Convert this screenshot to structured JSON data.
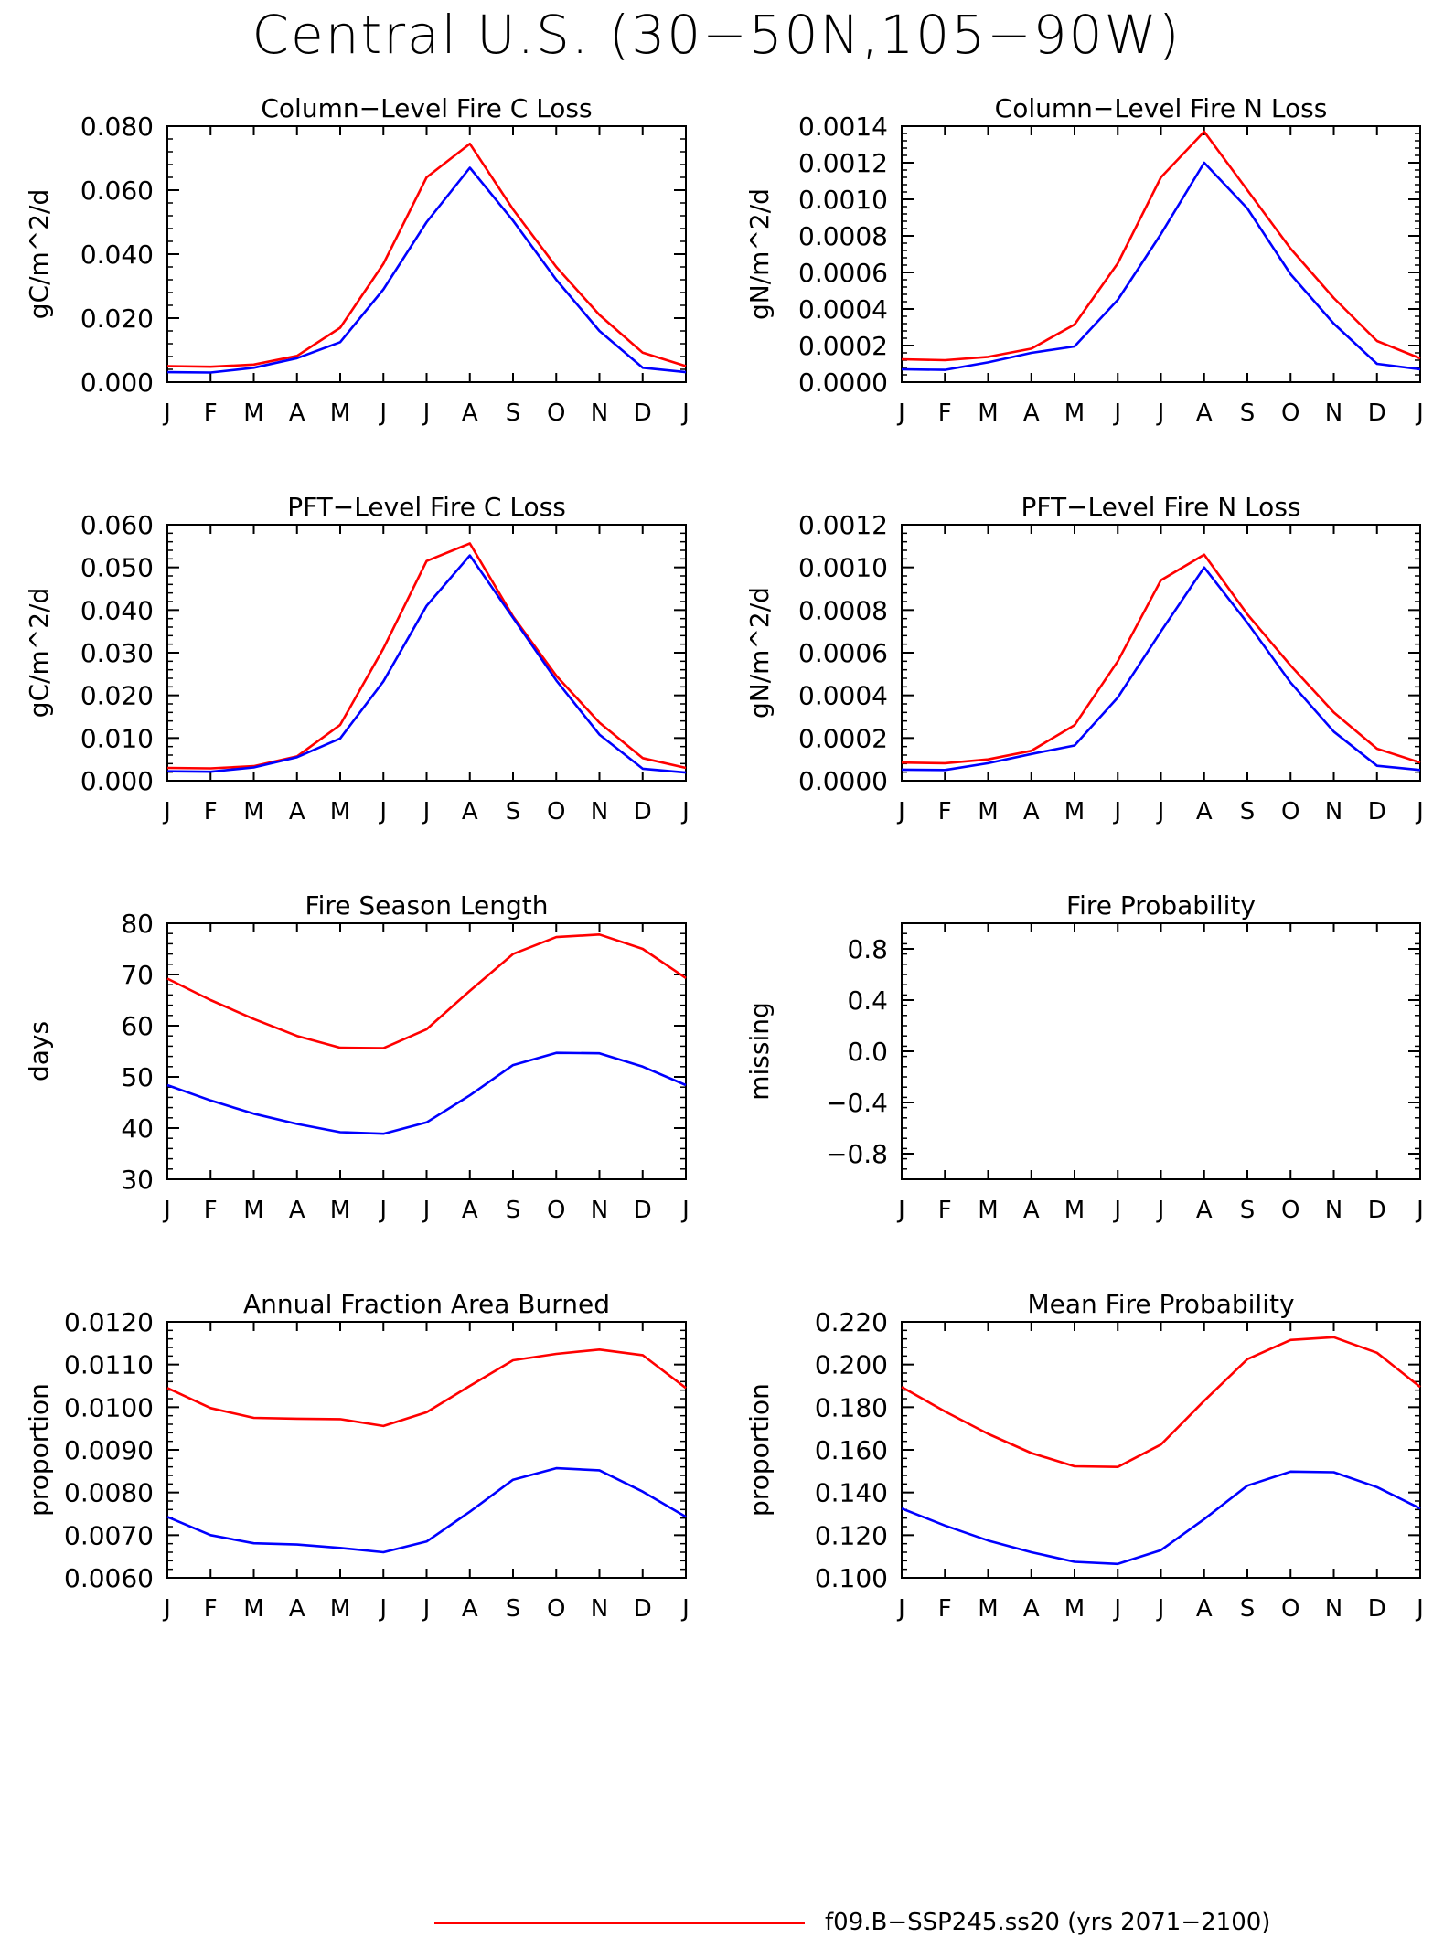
{
  "figure": {
    "title": "Central U.S. (30−50N,105−90W)"
  },
  "legend": {
    "label": "f09.B−SSP245.ss20 (yrs 2071−2100)",
    "color": "#ff0000"
  },
  "chart_data": [
    {
      "type": "line",
      "title": "Column−Level Fire C Loss",
      "ylabel": "gC/m^2/d",
      "xticklabels": [
        "J",
        "F",
        "M",
        "A",
        "M",
        "J",
        "J",
        "A",
        "S",
        "O",
        "N",
        "D",
        "J"
      ],
      "ylim": [
        0,
        0.08
      ],
      "yticks": [
        0,
        0.02,
        0.04,
        0.06,
        0.08
      ],
      "yticklabels": [
        "0.000",
        "0.020",
        "0.040",
        "0.060",
        "0.080"
      ],
      "series": [
        {
          "color": "#ff0000",
          "values": [
            0.005,
            0.0048,
            0.0055,
            0.0082,
            0.017,
            0.037,
            0.064,
            0.0745,
            0.054,
            0.036,
            0.021,
            0.0092,
            0.005
          ]
        },
        {
          "color": "#0000ff",
          "values": [
            0.0031,
            0.003,
            0.0045,
            0.0075,
            0.0125,
            0.029,
            0.05,
            0.067,
            0.0505,
            0.032,
            0.016,
            0.0045,
            0.0031
          ]
        }
      ]
    },
    {
      "type": "line",
      "title": "Column−Level Fire N Loss",
      "ylabel": "gN/m^2/d",
      "xticklabels": [
        "J",
        "F",
        "M",
        "A",
        "M",
        "J",
        "J",
        "A",
        "S",
        "O",
        "N",
        "D",
        "J"
      ],
      "ylim": [
        0,
        0.0014
      ],
      "yticks": [
        0,
        0.0002,
        0.0004,
        0.0006,
        0.0008,
        0.001,
        0.0012,
        0.0014
      ],
      "yticklabels": [
        "0.0000",
        "0.0002",
        "0.0004",
        "0.0006",
        "0.0008",
        "0.0010",
        "0.0012",
        "0.0014"
      ],
      "series": [
        {
          "color": "#ff0000",
          "values": [
            0.000125,
            0.00012,
            0.000138,
            0.000183,
            0.000315,
            0.00065,
            0.00112,
            0.00137,
            0.00105,
            0.00073,
            0.00046,
            0.000225,
            0.00013
          ]
        },
        {
          "color": "#0000ff",
          "values": [
            7e-05,
            6.7e-05,
            0.000108,
            0.00016,
            0.000195,
            0.00045,
            0.00081,
            0.0012,
            0.00095,
            0.00059,
            0.00032,
            0.0001,
            7e-05
          ]
        }
      ]
    },
    {
      "type": "line",
      "title": "PFT−Level Fire C Loss",
      "ylabel": "gC/m^2/d",
      "xticklabels": [
        "J",
        "F",
        "M",
        "A",
        "M",
        "J",
        "J",
        "A",
        "S",
        "O",
        "N",
        "D",
        "J"
      ],
      "ylim": [
        0,
        0.06
      ],
      "yticks": [
        0,
        0.01,
        0.02,
        0.03,
        0.04,
        0.05,
        0.06
      ],
      "yticklabels": [
        "0.000",
        "0.010",
        "0.020",
        "0.030",
        "0.040",
        "0.050",
        "0.060"
      ],
      "series": [
        {
          "color": "#ff0000",
          "values": [
            0.003,
            0.0029,
            0.0034,
            0.0057,
            0.0131,
            0.031,
            0.0515,
            0.0556,
            0.0385,
            0.0246,
            0.0136,
            0.0053,
            0.003
          ]
        },
        {
          "color": "#0000ff",
          "values": [
            0.0022,
            0.0021,
            0.0031,
            0.0055,
            0.0099,
            0.0233,
            0.041,
            0.0528,
            0.0382,
            0.0235,
            0.0108,
            0.0028,
            0.0019
          ]
        }
      ]
    },
    {
      "type": "line",
      "title": "PFT−Level Fire N Loss",
      "ylabel": "gN/m^2/d",
      "xticklabels": [
        "J",
        "F",
        "M",
        "A",
        "M",
        "J",
        "J",
        "A",
        "S",
        "O",
        "N",
        "D",
        "J"
      ],
      "ylim": [
        0,
        0.0012
      ],
      "yticks": [
        0,
        0.0002,
        0.0004,
        0.0006,
        0.0008,
        0.001,
        0.0012
      ],
      "yticklabels": [
        "0.0000",
        "0.0002",
        "0.0004",
        "0.0006",
        "0.0008",
        "0.0010",
        "0.0012"
      ],
      "series": [
        {
          "color": "#ff0000",
          "values": [
            8.5e-05,
            8.2e-05,
            0.0001,
            0.00014,
            0.00026,
            0.00056,
            0.00094,
            0.00106,
            0.00078,
            0.00054,
            0.00032,
            0.00015,
            8.5e-05
          ]
        },
        {
          "color": "#0000ff",
          "values": [
            5.2e-05,
            5e-05,
            8.2e-05,
            0.000125,
            0.000165,
            0.00039,
            0.0007,
            0.001,
            0.00074,
            0.00046,
            0.00023,
            7e-05,
            5e-05
          ]
        }
      ]
    },
    {
      "type": "line",
      "title": "Fire Season Length",
      "ylabel": "days",
      "xticklabels": [
        "J",
        "F",
        "M",
        "A",
        "M",
        "J",
        "J",
        "A",
        "S",
        "O",
        "N",
        "D",
        "J"
      ],
      "ylim": [
        30,
        80
      ],
      "yticks": [
        30,
        40,
        50,
        60,
        70,
        80
      ],
      "yticklabels": [
        "30",
        "40",
        "50",
        "60",
        "70",
        "80"
      ],
      "series": [
        {
          "color": "#ff0000",
          "values": [
            69.2,
            65,
            61.3,
            58,
            55.7,
            55.6,
            59.3,
            66.8,
            74,
            77.3,
            77.8,
            75,
            69.3
          ]
        },
        {
          "color": "#0000ff",
          "values": [
            48.4,
            45.4,
            42.8,
            40.8,
            39.2,
            38.9,
            41.1,
            46.4,
            52.3,
            54.7,
            54.6,
            52,
            48.4
          ]
        }
      ]
    },
    {
      "type": "line",
      "title": "Fire Probability",
      "ylabel": "missing",
      "xticklabels": [
        "J",
        "F",
        "M",
        "A",
        "M",
        "J",
        "J",
        "A",
        "S",
        "O",
        "N",
        "D",
        "J"
      ],
      "ylim": [
        -1,
        1
      ],
      "yticks": [
        -0.8,
        -0.4,
        0,
        0.4,
        0.8
      ],
      "yticklabels": [
        "−0.8",
        "−0.4",
        "0.0",
        "0.4",
        "0.8"
      ],
      "series": []
    },
    {
      "type": "line",
      "title": "Annual Fraction Area Burned",
      "ylabel": "proportion",
      "xticklabels": [
        "J",
        "F",
        "M",
        "A",
        "M",
        "J",
        "J",
        "A",
        "S",
        "O",
        "N",
        "D",
        "J"
      ],
      "ylim": [
        0.006,
        0.012
      ],
      "yticks": [
        0.006,
        0.007,
        0.008,
        0.009,
        0.01,
        0.011,
        0.012
      ],
      "yticklabels": [
        "0.0060",
        "0.0070",
        "0.0080",
        "0.0090",
        "0.0100",
        "0.0110",
        "0.0120"
      ],
      "series": [
        {
          "color": "#ff0000",
          "values": [
            0.01045,
            0.00998,
            0.00975,
            0.00973,
            0.00972,
            0.00956,
            0.00988,
            0.0105,
            0.0111,
            0.01125,
            0.01135,
            0.01122,
            0.01045
          ]
        },
        {
          "color": "#0000ff",
          "values": [
            0.00743,
            0.007,
            0.00681,
            0.00678,
            0.0067,
            0.0066,
            0.00685,
            0.00755,
            0.0083,
            0.00857,
            0.00852,
            0.00802,
            0.00743
          ]
        }
      ]
    },
    {
      "type": "line",
      "title": "Mean Fire Probability",
      "ylabel": "proportion",
      "xticklabels": [
        "J",
        "F",
        "M",
        "A",
        "M",
        "J",
        "J",
        "A",
        "S",
        "O",
        "N",
        "D",
        "J"
      ],
      "ylim": [
        0.1,
        0.22
      ],
      "yticks": [
        0.1,
        0.12,
        0.14,
        0.16,
        0.18,
        0.2,
        0.22
      ],
      "yticklabels": [
        "0.100",
        "0.120",
        "0.140",
        "0.160",
        "0.180",
        "0.200",
        "0.220"
      ],
      "series": [
        {
          "color": "#ff0000",
          "values": [
            0.1895,
            0.178,
            0.1675,
            0.1585,
            0.1523,
            0.152,
            0.1625,
            0.183,
            0.2025,
            0.2115,
            0.2128,
            0.2055,
            0.1895
          ]
        },
        {
          "color": "#0000ff",
          "values": [
            0.1325,
            0.1245,
            0.1175,
            0.112,
            0.1075,
            0.1065,
            0.113,
            0.1275,
            0.1432,
            0.1498,
            0.1495,
            0.1425,
            0.1325
          ]
        }
      ]
    }
  ]
}
